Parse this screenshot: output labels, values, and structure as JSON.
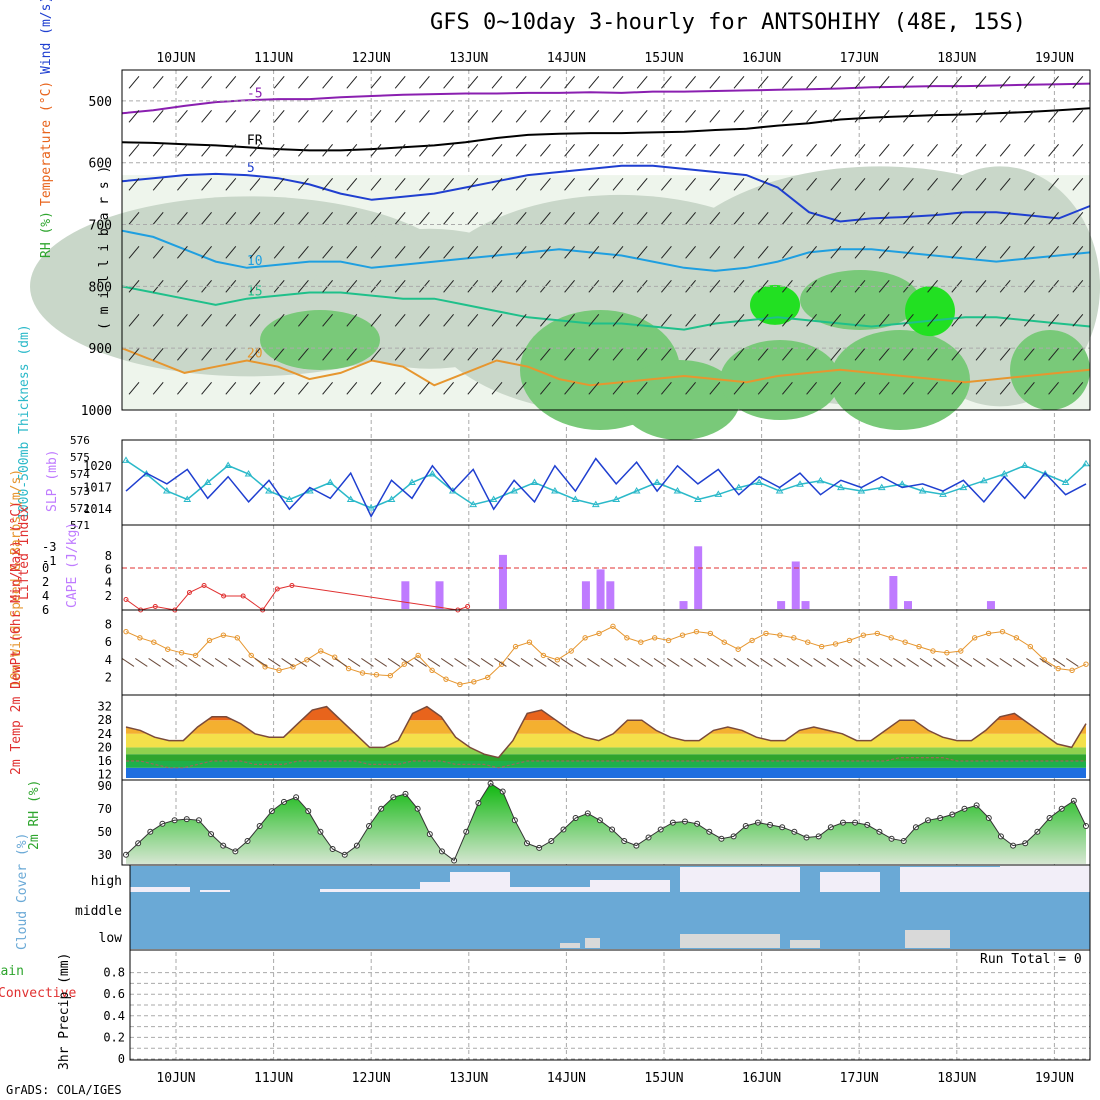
{
  "header": {
    "title": "GFS 0~10day 3-hourly for ANTSOHIHY (48E, 15S)",
    "credit": "GrADS: COLA/IGES",
    "run_total": "Run Total = 0"
  },
  "colors": {
    "axis": "#000000",
    "grid": "#aaaaaa",
    "slp": "#1f3fd0",
    "thickness": "#2bb9c9",
    "lifted": "#e03030",
    "cape": "#bf7bff",
    "wind": "#e6962f",
    "rh": "#2ea52e",
    "temp_hi": "#e8641c",
    "cloud": "#6aa9d6",
    "cloud_hi": "#f2eef8",
    "cloud_low": "#d9d9d9"
  },
  "chart_data": [
    {
      "type": "heatmap",
      "panel": "profile",
      "xlabels": [
        "10JUN",
        "11JUN",
        "12JUN",
        "13JUN",
        "14JUN",
        "15JUN",
        "16JUN",
        "17JUN",
        "18JUN",
        "19JUN"
      ],
      "ylabel_parts": [
        {
          "text": "RH (%)",
          "color": "#2ea52e"
        },
        {
          "text": "Temperature (°C)",
          "color": "#e8641c"
        },
        {
          "text": "Wind (m/s)",
          "color": "#1f3fd0"
        }
      ],
      "ylabel2": "( m i l l i b a r s )",
      "yticks": [
        "500",
        "600",
        "700",
        "800",
        "900",
        "1000"
      ],
      "ylim": [
        450,
        1000
      ],
      "isotherms": [
        {
          "label": "-5",
          "color": "#8a1fb0",
          "levels": [
            520,
            515,
            508,
            502,
            499,
            497,
            497,
            494,
            492,
            490,
            489,
            488,
            488,
            487,
            487,
            486,
            487,
            485,
            485,
            484,
            483,
            482,
            481,
            480,
            478,
            477,
            476,
            476,
            475,
            474,
            473,
            472
          ]
        },
        {
          "label": "FR",
          "color": "#000000",
          "levels": [
            567,
            568,
            570,
            572,
            575,
            578,
            580,
            580,
            578,
            575,
            572,
            567,
            560,
            555,
            553,
            552,
            552,
            551,
            550,
            547,
            545,
            540,
            536,
            530,
            527,
            525,
            523,
            522,
            520,
            518,
            515,
            512
          ]
        },
        {
          "label": "5",
          "color": "#1f3fd0",
          "levels": [
            630,
            625,
            620,
            618,
            620,
            625,
            635,
            650,
            660,
            655,
            650,
            640,
            630,
            620,
            615,
            610,
            605,
            605,
            610,
            615,
            620,
            640,
            680,
            695,
            690,
            688,
            685,
            680,
            680,
            685,
            690,
            670
          ]
        },
        {
          "label": "10",
          "color": "#1f9fe0",
          "levels": [
            710,
            720,
            740,
            760,
            770,
            765,
            760,
            760,
            770,
            765,
            760,
            755,
            750,
            745,
            740,
            745,
            750,
            760,
            770,
            775,
            770,
            760,
            745,
            740,
            740,
            745,
            750,
            755,
            760,
            755,
            750,
            745
          ]
        },
        {
          "label": "15",
          "color": "#1fc08a",
          "levels": [
            800,
            810,
            820,
            830,
            820,
            815,
            810,
            810,
            815,
            820,
            820,
            830,
            840,
            850,
            855,
            860,
            860,
            865,
            870,
            860,
            855,
            850,
            855,
            860,
            865,
            860,
            855,
            850,
            850,
            855,
            860,
            865
          ]
        },
        {
          "label": "20",
          "color": "#e6962f",
          "levels": [
            900,
            920,
            940,
            930,
            920,
            930,
            950,
            940,
            920,
            930,
            960,
            940,
            920,
            930,
            950,
            960,
            955,
            950,
            945,
            950,
            955,
            945,
            940,
            935,
            940,
            945,
            950,
            955,
            950,
            945,
            940,
            935
          ]
        }
      ]
    },
    {
      "type": "line",
      "panel": "slp_thickness",
      "ylabel_left": "1000-500mb Thickness (dm)",
      "ylabel_right": "SLP (mb)",
      "yticks_left": [
        "576",
        "575",
        "574",
        "573",
        "572",
        "571"
      ],
      "yticks_right": [
        "1020",
        "1017",
        "1014"
      ],
      "series": [
        {
          "name": "SLP (mb)",
          "color": "#1f3fd0",
          "values": [
            1016.5,
            1019.0,
            1017.5,
            1019.5,
            1015.5,
            1018.5,
            1015.0,
            1018.0,
            1014.0,
            1017.0,
            1015.5,
            1019.0,
            1013.0,
            1018.0,
            1015.5,
            1020.0,
            1016.5,
            1019.5,
            1014.0,
            1018.0,
            1015.0,
            1020.0,
            1016.5,
            1021.0,
            1017.5,
            1020.5,
            1016.5,
            1020.0,
            1017.5,
            1019.5,
            1016.0,
            1018.5,
            1017.0,
            1019.0,
            1016.0,
            1018.0,
            1017.0,
            1018.5,
            1017.0,
            1017.5,
            1016.5,
            1018.0,
            1015.0,
            1018.5,
            1015.5,
            1019.0,
            1016.0,
            1017.5
          ]
        },
        {
          "name": "Thickness (dm)",
          "color": "#2bb9c9",
          "values": [
            574.8,
            574.0,
            573.0,
            572.5,
            573.5,
            574.5,
            574.0,
            573.0,
            572.5,
            573.0,
            573.5,
            572.5,
            572.0,
            572.5,
            573.5,
            574.0,
            573.0,
            572.2,
            572.5,
            573.0,
            573.5,
            573.0,
            572.5,
            572.2,
            572.5,
            573.0,
            573.5,
            573.0,
            572.5,
            572.8,
            573.2,
            573.5,
            573.0,
            573.4,
            573.6,
            573.2,
            573.0,
            573.2,
            573.4,
            573.0,
            572.8,
            573.2,
            573.6,
            574.0,
            574.5,
            574.0,
            573.5,
            574.6
          ]
        }
      ]
    },
    {
      "type": "bar",
      "panel": "lifted_cape",
      "ylabel_left": "Lifted Index",
      "ylabel_right": "CAPE (J/kg)",
      "yticks_left": [
        "-3",
        "-1",
        "0",
        "2",
        "4",
        "6"
      ],
      "yticks_right": [
        "8",
        "6",
        "4",
        "2"
      ],
      "cape_bars": [
        {
          "day": 2.35,
          "value": 4.2
        },
        {
          "day": 2.7,
          "value": 4.2
        },
        {
          "day": 3.35,
          "value": 8.2
        },
        {
          "day": 4.2,
          "value": 4.2
        },
        {
          "day": 4.35,
          "value": 6.0
        },
        {
          "day": 4.45,
          "value": 4.2
        },
        {
          "day": 5.2,
          "value": 1.2
        },
        {
          "day": 5.35,
          "value": 9.5
        },
        {
          "day": 6.2,
          "value": 1.2
        },
        {
          "day": 6.35,
          "value": 7.2
        },
        {
          "day": 6.45,
          "value": 1.2
        },
        {
          "day": 7.35,
          "value": 5.0
        },
        {
          "day": 7.5,
          "value": 1.2
        },
        {
          "day": 8.35,
          "value": 1.2
        }
      ],
      "lifted_index": {
        "days": [
          0.0,
          0.15,
          0.3,
          0.5,
          0.65,
          0.8,
          1.0,
          1.2,
          1.4,
          1.55,
          1.7,
          3.4,
          3.5
        ],
        "values": [
          4.5,
          6.0,
          5.5,
          6.0,
          3.5,
          2.5,
          4.0,
          4.0,
          6.0,
          3.0,
          2.5,
          6.0,
          5.5
        ]
      }
    },
    {
      "type": "line",
      "panel": "wind10m",
      "ylabel": "10m Wind Speed & Barbs (m/s)",
      "yticks": [
        "8",
        "6",
        "4",
        "2"
      ],
      "series": [
        {
          "name": "10m Wind Speed",
          "color": "#e6962f",
          "values": [
            7.2,
            6.5,
            6.0,
            5.2,
            4.8,
            4.5,
            6.2,
            6.8,
            6.5,
            4.5,
            3.2,
            2.8,
            3.2,
            4.0,
            5.0,
            4.3,
            3.0,
            2.5,
            2.3,
            2.2,
            3.5,
            4.5,
            2.8,
            1.8,
            1.2,
            1.5,
            2.0,
            3.5,
            5.5,
            6.0,
            4.5,
            4.0,
            5.0,
            6.5,
            7.0,
            7.8,
            6.5,
            6.0,
            6.5,
            6.2,
            6.8,
            7.2,
            7.0,
            6.0,
            5.2,
            6.2,
            7.0,
            6.8,
            6.5,
            6.0,
            5.5,
            5.8,
            6.2,
            6.8,
            7.0,
            6.5,
            6.0,
            5.5,
            5.0,
            4.8,
            5.0,
            6.5,
            7.0,
            7.2,
            6.5,
            5.5,
            4.0,
            3.0,
            2.8,
            3.5
          ]
        }
      ]
    },
    {
      "type": "area",
      "panel": "temp2m",
      "ylabel": "2m Temp 2m DewPt (6hr Min/Max) (°C)",
      "yticks": [
        "32",
        "28",
        "24",
        "20",
        "16",
        "12"
      ],
      "series": [
        {
          "name": "2m Temp",
          "color": "#7a4a3a",
          "values": [
            26,
            25,
            23,
            22,
            22,
            26,
            29,
            29,
            27,
            24,
            23,
            23,
            27,
            31,
            32,
            28,
            24,
            20,
            20,
            22,
            30,
            32,
            29,
            23,
            20,
            18,
            17,
            22,
            30,
            31,
            28,
            25,
            23,
            22,
            24,
            28,
            28,
            25,
            23,
            22,
            22,
            25,
            26,
            25,
            23,
            22,
            22,
            25,
            26,
            25,
            24,
            22,
            22,
            25,
            28,
            28,
            25,
            23,
            22,
            22,
            25,
            29,
            30,
            27,
            24,
            21,
            20,
            27
          ]
        },
        {
          "name": "2m DewPt",
          "color": "#9a6a5a",
          "values": [
            16,
            16,
            15,
            14,
            14,
            15,
            16,
            16,
            16,
            15,
            15,
            15,
            16,
            16,
            16,
            16,
            16,
            15,
            15,
            15,
            16,
            16,
            16,
            15,
            15,
            15,
            14,
            15,
            16,
            16,
            16,
            16,
            16,
            16,
            16,
            16,
            16,
            16,
            16,
            16,
            16,
            16,
            16,
            16,
            16,
            16,
            16,
            16,
            16,
            16,
            16,
            16,
            16,
            16,
            17,
            17,
            17,
            17,
            16,
            16,
            16,
            16,
            16,
            16,
            16,
            16,
            16,
            16
          ]
        }
      ]
    },
    {
      "type": "area",
      "panel": "rh2m",
      "ylabel": "2m RH (%)",
      "yticks": [
        "90",
        "70",
        "50",
        "30"
      ],
      "series": [
        {
          "name": "2m RH",
          "color": "#2ea52e",
          "values": [
            30,
            40,
            50,
            57,
            60,
            61,
            60,
            48,
            38,
            33,
            42,
            55,
            68,
            76,
            80,
            68,
            50,
            35,
            30,
            38,
            55,
            70,
            80,
            83,
            70,
            48,
            33,
            25,
            50,
            75,
            92,
            85,
            60,
            40,
            36,
            42,
            52,
            62,
            66,
            60,
            52,
            42,
            38,
            45,
            52,
            58,
            59,
            57,
            50,
            44,
            46,
            55,
            58,
            56,
            54,
            50,
            45,
            46,
            54,
            58,
            58,
            56,
            50,
            44,
            42,
            54,
            60,
            62,
            65,
            70,
            73,
            62,
            46,
            38,
            40,
            50,
            62,
            70,
            77,
            55
          ]
        }
      ]
    },
    {
      "type": "heatmap",
      "panel": "cloud",
      "ylabel": "Cloud Cover (%)",
      "yticks": [
        "high",
        "middle",
        "low"
      ]
    },
    {
      "type": "bar",
      "panel": "precip",
      "ylabel_left": "Total / Rain",
      "ylabel_left2": "Convective",
      "ylabel_right": "3hr Precip (mm)",
      "yticks": [
        "0.8",
        "0.6",
        "0.4",
        "0.2",
        "0"
      ],
      "values": []
    }
  ]
}
